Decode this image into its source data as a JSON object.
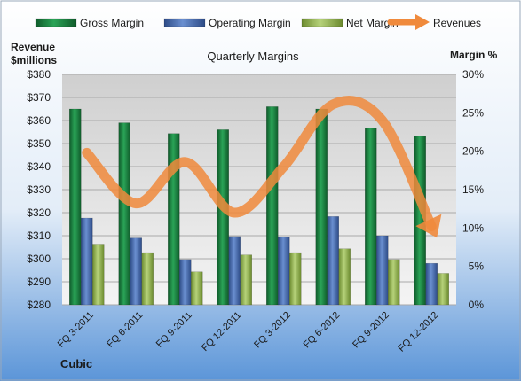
{
  "chart_data": {
    "type": "bar",
    "title": "Quarterly Margins",
    "left_axis_label_line1": "Revenue",
    "left_axis_label_line2": "$millions",
    "right_axis_label": "Margin %",
    "footer_label": "Cubic",
    "categories": [
      "FQ 3-2011",
      "FQ 6-2011",
      "FQ 9-2011",
      "FQ 12-2011",
      "FQ 3-2012",
      "FQ 6-2012",
      "FQ 9-2012",
      "FQ 12-2012"
    ],
    "left_ylim": [
      280,
      380
    ],
    "left_ticks": [
      "$280",
      "$290",
      "$300",
      "$310",
      "$320",
      "$330",
      "$340",
      "$350",
      "$360",
      "$370",
      "$380"
    ],
    "right_ylim": [
      0,
      30
    ],
    "right_ticks": [
      "0%",
      "5%",
      "10%",
      "15%",
      "20%",
      "25%",
      "30%"
    ],
    "grid": true,
    "legend_position": "top",
    "series": [
      {
        "name": "Gross Margin",
        "axis": "right",
        "kind": "bar",
        "color": "#1e8a44",
        "values": [
          25.5,
          23.7,
          22.3,
          22.8,
          25.8,
          25.5,
          23.0,
          22.0
        ]
      },
      {
        "name": "Operating Margin",
        "axis": "right",
        "kind": "bar",
        "color": "#4a6fb5",
        "values": [
          11.3,
          8.7,
          5.9,
          8.9,
          8.8,
          11.5,
          9.0,
          5.4
        ]
      },
      {
        "name": "Net Margin",
        "axis": "right",
        "kind": "bar",
        "color": "#9bbb59",
        "values": [
          7.9,
          6.8,
          4.3,
          6.5,
          6.8,
          7.3,
          5.9,
          4.1
        ]
      },
      {
        "name": "Revenues",
        "axis": "left",
        "kind": "arrow-line",
        "color": "#f08a3c",
        "values": [
          346,
          324,
          342,
          320,
          340,
          367,
          360,
          314
        ]
      }
    ]
  }
}
